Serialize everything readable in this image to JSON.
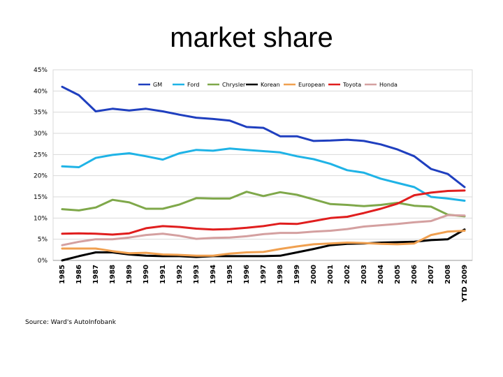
{
  "slide": {
    "title": "market share",
    "source": "Source: Ward's AutoInfobank"
  },
  "chart_data": {
    "type": "line",
    "title": "",
    "xlabel": "",
    "ylabel": "",
    "ylim": [
      0,
      45
    ],
    "yticks": [
      "0%",
      "5%",
      "10%",
      "15%",
      "20%",
      "25%",
      "30%",
      "35%",
      "40%",
      "45%"
    ],
    "grid": true,
    "legend_position": "top",
    "categories": [
      "1985",
      "1986",
      "1987",
      "1988",
      "1989",
      "1990",
      "1991",
      "1992",
      "1993",
      "1994",
      "1995",
      "1996",
      "1997",
      "1998",
      "1999",
      "2000",
      "2001",
      "2002",
      "2003",
      "2004",
      "2005",
      "2006",
      "2007",
      "2008",
      "YTD 2009"
    ],
    "series": [
      {
        "name": "GM",
        "color": "#1f3fbf",
        "values": [
          41,
          39,
          35.2,
          35.8,
          35.4,
          35.8,
          35.2,
          34.4,
          33.7,
          33.4,
          33,
          31.5,
          31.3,
          29.3,
          29.3,
          28.2,
          28.3,
          28.5,
          28.2,
          27.4,
          26.2,
          24.6,
          21.6,
          20.4,
          17.3
        ]
      },
      {
        "name": "Ford",
        "color": "#1fb3e6",
        "values": [
          22.2,
          22,
          24.2,
          24.9,
          25.3,
          24.6,
          23.8,
          25.3,
          26.1,
          25.9,
          26.4,
          26.1,
          25.8,
          25.5,
          24.6,
          23.9,
          22.8,
          21.3,
          20.7,
          19.3,
          18.3,
          17.3,
          15,
          14.6,
          14.1
        ]
      },
      {
        "name": "Chrysler",
        "color": "#7fa84a",
        "values": [
          12.1,
          11.8,
          12.5,
          14.3,
          13.7,
          12.2,
          12.2,
          13.2,
          14.7,
          14.6,
          14.6,
          16.2,
          15.2,
          16.1,
          15.5,
          14.4,
          13.3,
          13.1,
          12.8,
          13.1,
          13.6,
          12.9,
          12.7,
          10.8,
          10.4
        ]
      },
      {
        "name": "Korean",
        "color": "#000000",
        "values": [
          0,
          1,
          1.9,
          1.9,
          1.4,
          1.1,
          1,
          1,
          0.8,
          1,
          1,
          1,
          1,
          1.1,
          1.9,
          2.7,
          3.6,
          3.9,
          4,
          4.2,
          4.3,
          4.4,
          4.8,
          5,
          7.3
        ]
      },
      {
        "name": "European",
        "color": "#f0a050",
        "values": [
          2.8,
          2.8,
          2.8,
          2.2,
          1.7,
          1.8,
          1.4,
          1.3,
          1.1,
          1.1,
          1.6,
          1.9,
          2,
          2.7,
          3.3,
          3.8,
          4,
          4.2,
          4.1,
          3.9,
          3.8,
          4,
          6,
          6.8,
          7
        ]
      },
      {
        "name": "Toyota",
        "color": "#e01e1e",
        "values": [
          6.3,
          6.4,
          6.3,
          6.1,
          6.4,
          7.6,
          8.1,
          7.9,
          7.5,
          7.3,
          7.4,
          7.7,
          8.1,
          8.7,
          8.6,
          9.3,
          10,
          10.3,
          11.2,
          12.2,
          13.4,
          15.4,
          16,
          16.4,
          16.5
        ]
      },
      {
        "name": "Honda",
        "color": "#d4a0a0",
        "values": [
          3.6,
          4.4,
          5,
          5,
          5.4,
          6,
          6.3,
          5.8,
          5.1,
          5.3,
          5.4,
          5.7,
          6.2,
          6.5,
          6.5,
          6.8,
          7,
          7.4,
          8,
          8.3,
          8.6,
          9,
          9.3,
          10.7,
          10.6
        ]
      }
    ]
  }
}
